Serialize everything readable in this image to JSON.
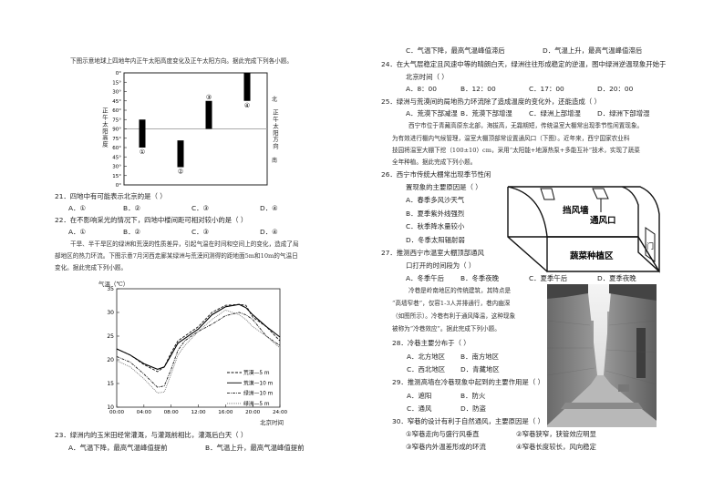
{
  "left": {
    "intro1": "下图示意地球上四地年内正午太阳高度变化及正午太阳方向。据此完成下列各小题。",
    "q21": {
      "stem": "21．四地中有可能表示北京的是（   ）",
      "options": [
        "A．①",
        "B．②",
        "C．③",
        "D．④"
      ]
    },
    "q22": {
      "stem": "22．在不影响采光的情况下，四地中楼间距可相对较小的是（   ）",
      "options": [
        "A．①",
        "B．②",
        "C．③",
        "D．④"
      ]
    },
    "intro2": [
      "干旱、半干旱区的绿洲和荒漠的性质差异，引起气温在时间和空间上的变化，造成了局",
      "部地区的热力环流。下图示意7月河西走廊某绿洲与荒漠间测得的距地面5m和10m的气温日",
      "变化。据此完成下列小题。"
    ],
    "q23": {
      "stem": "23．绿洲内的玉米田经常灌溉，与灌溉前相比，灌溉后白天（   ）",
      "options": [
        "A．气温下降，最高气温峰值提前",
        "B．气温上升，最高气温峰值提前"
      ]
    }
  },
  "right": {
    "q23_cont": [
      "C．气温下降，最高气温峰值滞后",
      "D．气温上升，最高气温峰值滞后"
    ],
    "q24": {
      "stem": [
        "24．在大气层稳定且风速中等的晴朗白天，绿洲往往形成稳定的逆温，图中绿洲逆温现象开始于",
        "北京时间（   ）"
      ],
      "options": [
        "A．8：00",
        "B．12：00",
        "C．17：00",
        "D．20：00"
      ]
    },
    "q25": {
      "stem": "25．绿洲与荒漠间的局地热力环流除了造成温度的变化外，还能造成（   ）",
      "options": [
        "A．荒漠下部减湿",
        "B．荒漠下部增湿",
        "C．绿洲上部增湿",
        "D．绿洲下部增湿"
      ]
    },
    "intro3": [
      "西宁市位于青藏高原东北部，海拔高，无霜期短，传统温室大棚常出现季节性闲置现象。",
      "为有效进行棚内气候管理，温室大棚顶部常设置通风口（下图）。近年来，西宁国家农业科",
      "技园将温室大棚下挖（100±10）cm，采用“太阳能+地源热泵+多能互补”技术，实现了蔬菜",
      "全年种植。据此完成下列小题。"
    ],
    "q26": {
      "stem": [
        "26．西宁市传统大棚常出现季节性闲",
        "置现象的主要原因是（   ）"
      ],
      "options": [
        "A．春季多风沙天气",
        "B．夏季紫外线强烈",
        "C．秋季降水量较小",
        "D．冬季太阳辐射弱"
      ]
    },
    "q27": {
      "stem": [
        "27．推测西宁市温室大棚顶部通风",
        "口打开的时间段为（   ）"
      ],
      "options": [
        "A．冬季午后",
        "B．冬季夜晚",
        "C．夏季午后",
        "D．夏季夜晚"
      ]
    },
    "greenhouse": {
      "wind_wall": "挡风墙",
      "vent": "通风口",
      "door": "门",
      "planting_area": "蔬菜种植区"
    },
    "intro4": [
      "冷巷是岭南地区的传统建筑，其特点是",
      "“高墙窄巷”，仅容1-3人并排通行，巷内幽深",
      "（如图所示）。冷巷有利于通风降温，这种现象",
      "被称为“冷巷效应”。据此完成下列小题。"
    ],
    "q28": {
      "stem": "28．冷巷主要分布于（   ）",
      "options": [
        "A．北方地区",
        "B．南方地区",
        "C．西北地区",
        "D．青藏地区"
      ]
    },
    "q29": {
      "stem": "29．推测高墙在冷巷现象中起到的主要作用是（   ）",
      "options": [
        "A．遮阳",
        "B．防火",
        "C．通风",
        "D．防盗"
      ]
    },
    "q30": {
      "stem": "30．窄巷的设计有利于自然通风，主要原因是（   ）",
      "options": [
        "①窄巷走向与盛行风垂直",
        "②窄巷狭窄，狭管效应明显",
        "③窄巷内外温差形成的环流",
        "④窄巷长度较长，风向稳定"
      ]
    }
  },
  "chart_data": [
    {
      "type": "bar",
      "title": "",
      "ylabel": "正午太阳高度",
      "y2label": "正午太阳方向",
      "north_label": "北",
      "south_label": "南",
      "yticks": [
        "0°",
        "15°",
        "30°",
        "45°",
        "60°",
        "75°",
        "90°",
        "75°",
        "60°",
        "45°",
        "30°",
        "15°",
        "0°"
      ],
      "bars": [
        {
          "label": "①",
          "from": {
            "side": "北",
            "deg": 75
          },
          "to": {
            "side": "南",
            "deg": 60
          }
        },
        {
          "label": "②",
          "from": {
            "side": "南",
            "deg": 71.5
          },
          "to": {
            "side": "南",
            "deg": 28.5
          }
        },
        {
          "label": "③",
          "from": {
            "side": "北",
            "deg": 45
          },
          "to": {
            "side": "北",
            "deg": 90
          }
        },
        {
          "label": "④",
          "from": {
            "side": "北",
            "deg": 0
          },
          "to": {
            "side": "北",
            "deg": 45
          }
        }
      ]
    },
    {
      "type": "line",
      "ylabel": "气温（℃）",
      "xlabel": "北京时间",
      "ylim": [
        10,
        35
      ],
      "xlim": [
        0,
        24
      ],
      "yticks": [
        10,
        15,
        20,
        25,
        30,
        35
      ],
      "xticks": [
        "00:00",
        "04:00",
        "08:00",
        "12:00",
        "16:00",
        "20:00",
        "24:00"
      ],
      "legend": "bottom-right",
      "x": [
        0,
        2,
        4,
        6,
        7,
        8,
        9,
        10,
        12,
        14,
        16,
        18,
        19,
        20,
        22,
        24
      ],
      "series": [
        {
          "name": "荒漠—5 m",
          "style": "dashed",
          "values": [
            22.3,
            21,
            19,
            17.5,
            18.5,
            21.5,
            24,
            25,
            27,
            30,
            31.5,
            31.7,
            31.5,
            29,
            27,
            24
          ]
        },
        {
          "name": "荒漠—10 m",
          "style": "solid",
          "values": [
            22.3,
            21,
            19.2,
            18,
            18.5,
            21,
            23.5,
            24.5,
            26.5,
            29.5,
            31.2,
            31.7,
            31,
            29.5,
            27,
            24.8
          ]
        },
        {
          "name": "绿洲—10 m",
          "style": "dashdot",
          "values": [
            20.7,
            19.5,
            17,
            14.2,
            14.5,
            18,
            22,
            24,
            26,
            27.5,
            29.3,
            30,
            29.5,
            28.5,
            25,
            23
          ]
        },
        {
          "name": "绿洲—5 m",
          "style": "dotted",
          "values": [
            19.8,
            18.5,
            16,
            13,
            13.2,
            17,
            21,
            23,
            26,
            28.5,
            30.5,
            29.5,
            28.5,
            27,
            25,
            22.5
          ]
        }
      ]
    }
  ]
}
